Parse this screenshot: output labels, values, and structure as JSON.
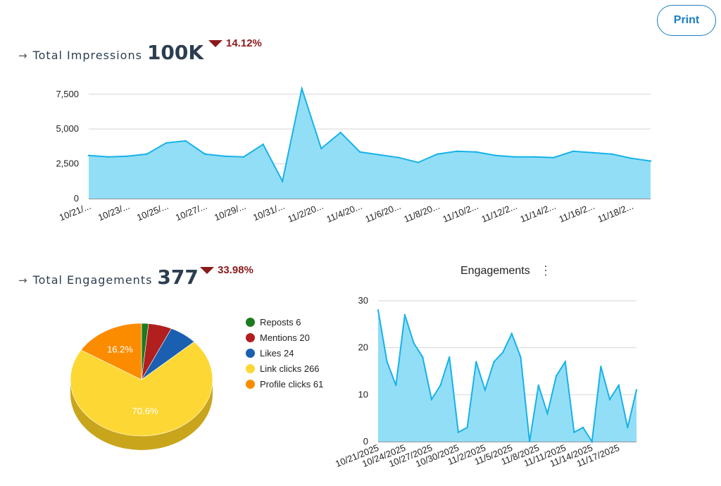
{
  "print_label": "Print",
  "impressions": {
    "arrow": "→",
    "title": "Total Impressions",
    "value": "100K",
    "delta": "14.12%"
  },
  "engagements": {
    "arrow": "→",
    "title": "Total Engagements",
    "value": "377",
    "delta": "33.98%"
  },
  "colors": {
    "area_fill": "#8ddcf7",
    "area_line": "#16b2e8",
    "delta_down": "#8b1a1a",
    "print_accent": "#1a7fc1"
  },
  "chart_data": [
    {
      "type": "area",
      "title": "",
      "ylim": [
        0,
        8500
      ],
      "yticks": [
        "0",
        "2,500",
        "5,000",
        "7,500"
      ],
      "ytick_values": [
        0,
        2500,
        5000,
        7500
      ],
      "xtick_labels": [
        "10/21/...",
        "10/23/...",
        "10/25/...",
        "10/27/...",
        "10/29/...",
        "10/31/...",
        "11/2/20...",
        "11/4/20...",
        "11/6/20...",
        "11/8/20...",
        "11/10/2...",
        "11/12/2...",
        "11/14/2...",
        "11/16/2...",
        "11/18/2..."
      ],
      "x": [
        "10/21",
        "10/22",
        "10/23",
        "10/24",
        "10/25",
        "10/26",
        "10/27",
        "10/28",
        "10/29",
        "10/30",
        "10/31",
        "11/1",
        "11/2",
        "11/3",
        "11/4",
        "11/5",
        "11/6",
        "11/7",
        "11/8",
        "11/9",
        "11/10",
        "11/11",
        "11/12",
        "11/13",
        "11/14",
        "11/15",
        "11/16",
        "11/17",
        "11/18",
        "11/19"
      ],
      "values": [
        3100,
        3000,
        3050,
        3200,
        4000,
        4150,
        3200,
        3050,
        3000,
        3900,
        1250,
        7900,
        3600,
        4750,
        3350,
        3150,
        2950,
        2600,
        3200,
        3400,
        3350,
        3100,
        3000,
        3000,
        2950,
        3400,
        3300,
        3200,
        2900,
        2700
      ],
      "grid": true
    },
    {
      "type": "pie",
      "labels": [
        "Reposts 6",
        "Mentions 20",
        "Likes 24",
        "Link clicks 266",
        "Profile clicks 61"
      ],
      "values": [
        6,
        20,
        24,
        266,
        61
      ],
      "colors": [
        "#1e7a1e",
        "#b11f1f",
        "#1a5fb0",
        "#fdd835",
        "#fb8c00"
      ],
      "slice_labels": [
        "",
        "",
        "",
        "70.6%",
        "16.2%"
      ],
      "legend_position": "right"
    },
    {
      "type": "area",
      "title": "Engagements",
      "ylim": [
        0,
        30
      ],
      "yticks": [
        "0",
        "10",
        "20",
        "30"
      ],
      "ytick_values": [
        0,
        10,
        20,
        30
      ],
      "xtick_labels": [
        "10/21/2025",
        "10/24/2025",
        "10/27/2025",
        "10/30/2025",
        "11/2/2025",
        "11/5/2025",
        "11/8/2025",
        "11/11/2025",
        "11/14/2025",
        "11/17/2025"
      ],
      "x": [
        "10/21",
        "10/22",
        "10/23",
        "10/24",
        "10/25",
        "10/26",
        "10/27",
        "10/28",
        "10/29",
        "10/30",
        "10/31",
        "11/1",
        "11/2",
        "11/3",
        "11/4",
        "11/5",
        "11/6",
        "11/7",
        "11/8",
        "11/9",
        "11/10",
        "11/11",
        "11/12",
        "11/13",
        "11/14",
        "11/15",
        "11/16",
        "11/17",
        "11/18",
        "11/19"
      ],
      "values": [
        28,
        17,
        12,
        27,
        21,
        18,
        9,
        12,
        18,
        2,
        3,
        17,
        11,
        17,
        19,
        23,
        18,
        0,
        12,
        6,
        14,
        17,
        2,
        3,
        0,
        16,
        9,
        12,
        3,
        11
      ],
      "grid": true
    }
  ]
}
